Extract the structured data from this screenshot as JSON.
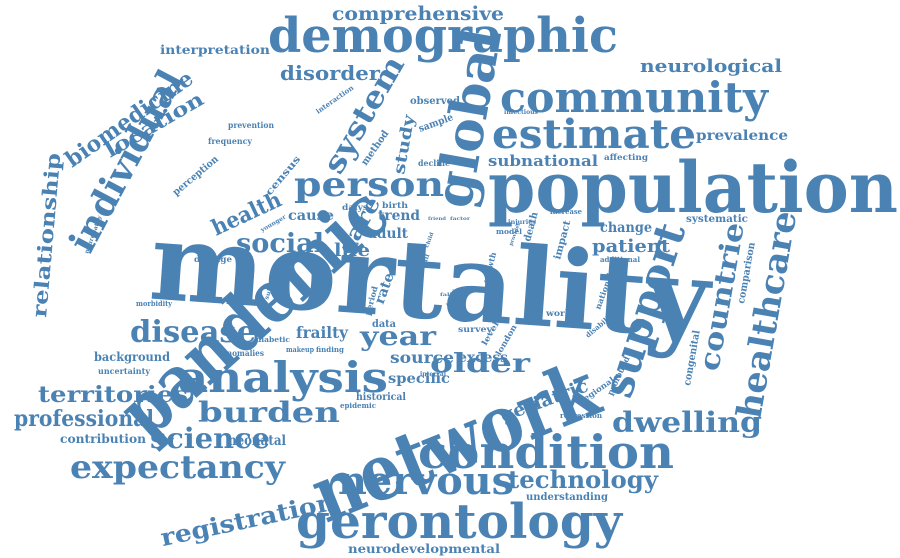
{
  "color": "#4a82b4",
  "words": [
    {
      "text": "mortality",
      "weight": 100
    },
    {
      "text": "network",
      "weight": 80
    },
    {
      "text": "pandemic",
      "weight": 78
    },
    {
      "text": "population",
      "weight": 74
    },
    {
      "text": "global",
      "weight": 56
    },
    {
      "text": "demographic",
      "weight": 50
    },
    {
      "text": "gerontology",
      "weight": 50
    },
    {
      "text": "condition",
      "weight": 48
    },
    {
      "text": "community",
      "weight": 44
    },
    {
      "text": "analysis",
      "weight": 42
    },
    {
      "text": "support",
      "weight": 42
    },
    {
      "text": "estimate",
      "weight": 40
    },
    {
      "text": "nervous",
      "weight": 38
    },
    {
      "text": "individual",
      "weight": 38
    },
    {
      "text": "healthcare",
      "weight": 36
    },
    {
      "text": "expectancy",
      "weight": 34
    },
    {
      "text": "person",
      "weight": 34
    },
    {
      "text": "system",
      "weight": 32
    },
    {
      "text": "disease",
      "weight": 30
    },
    {
      "text": "countrie",
      "weight": 30
    },
    {
      "text": "burden",
      "weight": 28
    },
    {
      "text": "science",
      "weight": 28
    },
    {
      "text": "dwelling",
      "weight": 28
    },
    {
      "text": "registration",
      "weight": 26
    },
    {
      "text": "technology",
      "weight": 26
    },
    {
      "text": "biomedicine",
      "weight": 24
    },
    {
      "text": "territories",
      "weight": 24
    },
    {
      "text": "older",
      "weight": 24
    },
    {
      "text": "year",
      "weight": 24
    },
    {
      "text": "social",
      "weight": 24
    },
    {
      "text": "professional",
      "weight": 22
    },
    {
      "text": "location",
      "weight": 20
    },
    {
      "text": "relationship",
      "weight": 20
    },
    {
      "text": "comprehensive",
      "weight": 20
    },
    {
      "text": "disorder",
      "weight": 20
    },
    {
      "text": "health",
      "weight": 20
    },
    {
      "text": "care",
      "weight": 20
    },
    {
      "text": "neurological",
      "weight": 18
    },
    {
      "text": "patient",
      "weight": 18
    },
    {
      "text": "geriatric",
      "weight": 18
    },
    {
      "text": "subnational",
      "weight": 16
    },
    {
      "text": "life",
      "weight": 16
    },
    {
      "text": "frailty",
      "weight": 16
    },
    {
      "text": "source",
      "weight": 16
    },
    {
      "text": "study",
      "weight": 16
    },
    {
      "text": "prevalence",
      "weight": 14
    },
    {
      "text": "change",
      "weight": 14
    },
    {
      "text": "cause",
      "weight": 14
    },
    {
      "text": "excess",
      "weight": 14
    },
    {
      "text": "specific",
      "weight": 14
    },
    {
      "text": "neonatal",
      "weight": 14
    },
    {
      "text": "adult",
      "weight": 14
    },
    {
      "text": "trend",
      "weight": 14
    },
    {
      "text": "rate",
      "weight": 14
    },
    {
      "text": "interpretation",
      "weight": 12
    },
    {
      "text": "neurodevelopmental",
      "weight": 12
    },
    {
      "text": "background",
      "weight": 12
    },
    {
      "text": "contribution",
      "weight": 12
    },
    {
      "text": "systematic",
      "weight": 10
    },
    {
      "text": "understanding",
      "weight": 10
    },
    {
      "text": "historical",
      "weight": 10
    },
    {
      "text": "congenital",
      "weight": 10
    },
    {
      "text": "comparison",
      "weight": 10
    },
    {
      "text": "method",
      "weight": 10
    },
    {
      "text": "observed",
      "weight": 10
    },
    {
      "text": "sample",
      "weight": 10
    },
    {
      "text": "perception",
      "weight": 10
    },
    {
      "text": "census",
      "weight": 10
    },
    {
      "text": "prevention",
      "weight": 8
    },
    {
      "text": "frequency",
      "weight": 8
    },
    {
      "text": "affecting",
      "weight": 8
    },
    {
      "text": "decline",
      "weight": 8
    },
    {
      "text": "impact",
      "weight": 8
    },
    {
      "text": "death",
      "weight": 8
    },
    {
      "text": "growth",
      "weight": 8
    },
    {
      "text": "birth",
      "weight": 8
    },
    {
      "text": "dalys",
      "weight": 8
    },
    {
      "text": "period",
      "weight": 8
    },
    {
      "text": "level",
      "weight": 8
    },
    {
      "text": "london",
      "weight": 8
    },
    {
      "text": "survey",
      "weight": 8
    },
    {
      "text": "profound",
      "weight": 8
    },
    {
      "text": "national",
      "weight": 8
    },
    {
      "text": "regional",
      "weight": 8
    },
    {
      "text": "data",
      "weight": 8
    },
    {
      "text": "damage",
      "weight": 8
    },
    {
      "text": "diabetic",
      "weight": 8
    },
    {
      "text": "anomalies",
      "weight": 8
    },
    {
      "text": "uncertainty",
      "weight": 8
    },
    {
      "text": "morbidity",
      "weight": 8
    },
    {
      "text": "finding",
      "weight": 8
    },
    {
      "text": "makeup",
      "weight": 8
    },
    {
      "text": "epidemic",
      "weight": 8
    },
    {
      "text": "increase",
      "weight": 8
    },
    {
      "text": "additional",
      "weight": 8
    },
    {
      "text": "worker",
      "weight": 8
    },
    {
      "text": "regression",
      "weight": 8
    },
    {
      "text": "disability",
      "weight": 8
    },
    {
      "text": "interaction",
      "weight": 6
    },
    {
      "text": "infectious",
      "weight": 6
    },
    {
      "text": "younger",
      "weight": 6
    },
    {
      "text": "subset",
      "weight": 6
    },
    {
      "text": "neuropathy",
      "weight": 6
    },
    {
      "text": "model",
      "weight": 6
    },
    {
      "text": "injuries",
      "weight": 6
    },
    {
      "text": "interval",
      "weight": 6
    },
    {
      "text": "friend",
      "weight": 5
    },
    {
      "text": "factor",
      "weight": 5
    },
    {
      "text": "child",
      "weight": 5
    },
    {
      "text": "frail",
      "weight": 5
    },
    {
      "text": "fall",
      "weight": 5
    },
    {
      "text": "vital",
      "weight": 5
    },
    {
      "text": "aged",
      "weight": 5
    },
    {
      "text": "provider",
      "weight": 5
    }
  ]
}
